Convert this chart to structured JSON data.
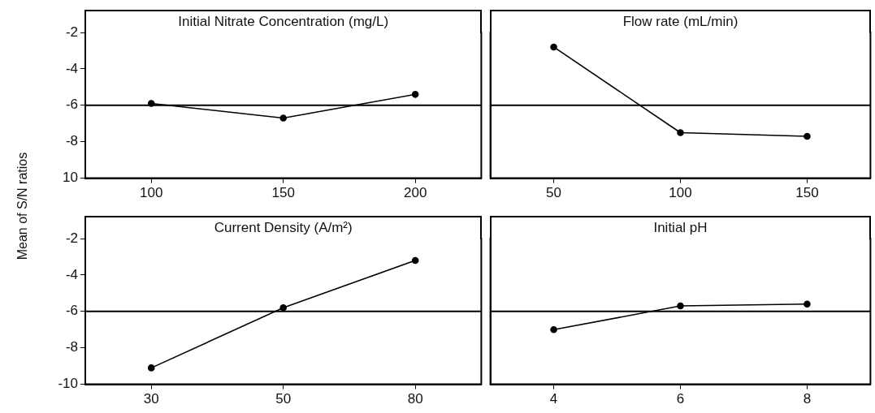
{
  "chart_data": [
    {
      "type": "line",
      "title": "Initial Nitrate Concentration (mg/L)",
      "ylabel": "Mean of S/N ratios",
      "categories": [
        "100",
        "150",
        "200"
      ],
      "values": [
        -5.9,
        -6.7,
        -5.4
      ],
      "color": "#000000",
      "marker": "circle",
      "ylim": [
        -10,
        -2
      ],
      "yticks": [
        -2,
        -4,
        -6,
        -8,
        {
          "value": -10,
          "label": "10"
        }
      ],
      "ref_lines": [
        {
          "axis": "y",
          "value": -6,
          "color": "#000000"
        }
      ]
    },
    {
      "type": "line",
      "title": "Flow rate (mL/min)",
      "categories": [
        "50",
        "100",
        "150"
      ],
      "values": [
        -2.8,
        -7.5,
        -7.7
      ],
      "color": "#000000",
      "marker": "circle",
      "ylim": [
        -10,
        -2
      ],
      "yticks": [
        -2,
        -4,
        -6,
        -8,
        -10
      ],
      "tick_labels": "x",
      "ref_lines": [
        {
          "axis": "y",
          "value": -6,
          "color": "#000000"
        }
      ]
    },
    {
      "type": "line",
      "title": "Current Density (A/m²)",
      "categories": [
        "30",
        "50",
        "80"
      ],
      "values": [
        -9.1,
        -5.8,
        -3.2
      ],
      "color": "#000000",
      "marker": "circle",
      "ylim": [
        -10,
        -2
      ],
      "yticks": [
        -2,
        -4,
        -6,
        -8,
        -10
      ],
      "ref_lines": [
        {
          "axis": "y",
          "value": -6,
          "color": "#000000"
        }
      ]
    },
    {
      "type": "line",
      "title": "Initial pH",
      "categories": [
        "4",
        "6",
        "8"
      ],
      "values": [
        -7.0,
        -5.7,
        -5.6
      ],
      "color": "#000000",
      "marker": "circle",
      "ylim": [
        -10,
        -2
      ],
      "yticks": [
        -2,
        -4,
        -6,
        -8,
        -10
      ],
      "tick_labels": "x",
      "ref_lines": [
        {
          "axis": "y",
          "value": -6,
          "color": "#000000"
        }
      ]
    }
  ]
}
